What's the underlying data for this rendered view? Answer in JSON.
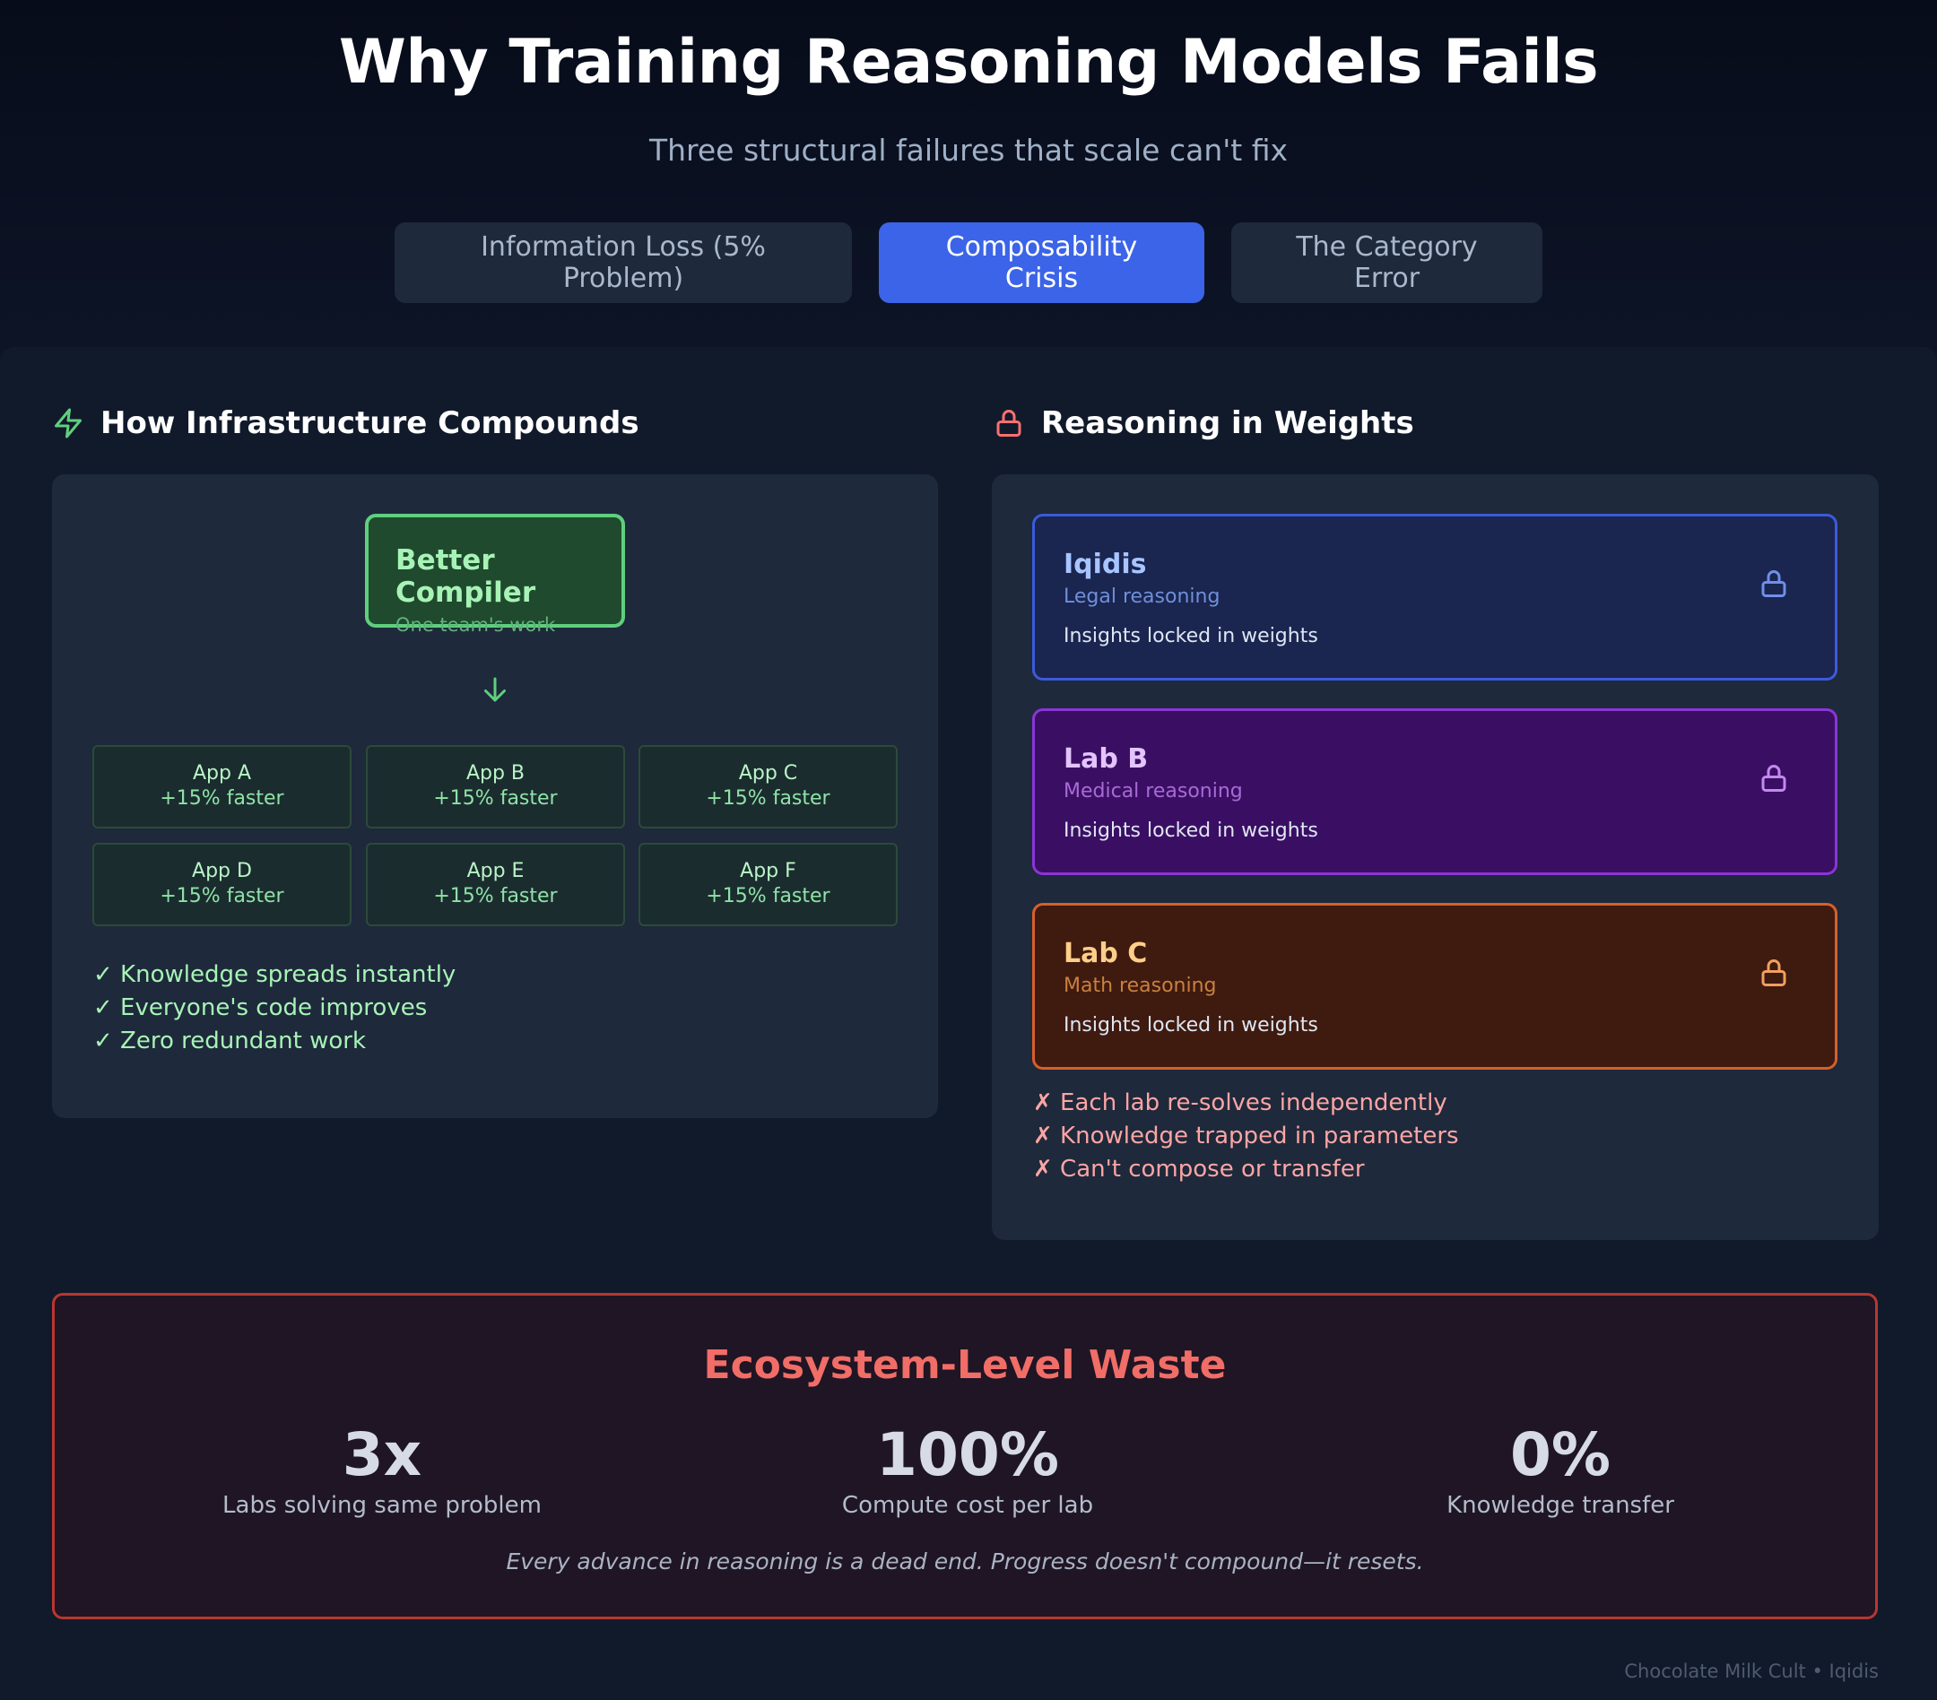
{
  "header": {
    "title": "Why Training Reasoning Models Fails",
    "subtitle": "Three structural failures that scale can't fix"
  },
  "tabs": [
    {
      "label": "Information Loss (5% Problem)",
      "active": false
    },
    {
      "label": "Composability Crisis",
      "active": true
    },
    {
      "label": "The Category Error",
      "active": false
    }
  ],
  "infrastructure": {
    "title": "How Infrastructure Compounds",
    "icon": "lightning-icon",
    "compiler": {
      "name": "Better Compiler",
      "sub": "One team's work"
    },
    "apps": [
      {
        "name": "App A",
        "value": "+15% faster"
      },
      {
        "name": "App B",
        "value": "+15% faster"
      },
      {
        "name": "App C",
        "value": "+15% faster"
      },
      {
        "name": "App D",
        "value": "+15% faster"
      },
      {
        "name": "App E",
        "value": "+15% faster"
      },
      {
        "name": "App F",
        "value": "+15% faster"
      }
    ],
    "checks": [
      "✓ Knowledge spreads instantly",
      "✓ Everyone's code improves",
      "✓ Zero redundant work"
    ]
  },
  "weights": {
    "title": "Reasoning in Weights",
    "icon": "lock-icon",
    "labs": [
      {
        "name": "Iqidis",
        "type": "Legal reasoning",
        "note": "Insights locked in weights",
        "color": "#3b5bdb"
      },
      {
        "name": "Lab B",
        "type": "Medical reasoning",
        "note": "Insights locked in weights",
        "color": "#8b35d6"
      },
      {
        "name": "Lab C",
        "type": "Math reasoning",
        "note": "Insights locked in weights",
        "color": "#d5602b"
      }
    ],
    "failures": [
      "✗ Each lab re-solves independently",
      "✗ Knowledge trapped in parameters",
      "✗ Can't compose or transfer"
    ]
  },
  "waste": {
    "title": "Ecosystem-Level Waste",
    "stats": [
      {
        "value": "3x",
        "label": "Labs solving same problem"
      },
      {
        "value": "100%",
        "label": "Compute cost per lab"
      },
      {
        "value": "0%",
        "label": "Knowledge transfer"
      }
    ],
    "quote": "Every advance in reasoning is a dead end. Progress doesn't compound—it resets."
  },
  "footer": "Chocolate Milk Cult • Iqidis"
}
